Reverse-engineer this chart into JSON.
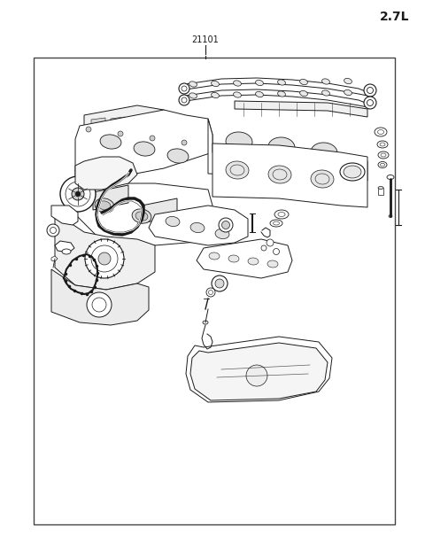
{
  "title_top_right": "2.7L",
  "part_number_label": "21101",
  "bg_color": "#ffffff",
  "border_color": "#444444",
  "line_color": "#1a1a1a",
  "title_fontsize": 10,
  "label_fontsize": 7,
  "fig_width": 4.8,
  "fig_height": 6.22,
  "dpi": 100
}
